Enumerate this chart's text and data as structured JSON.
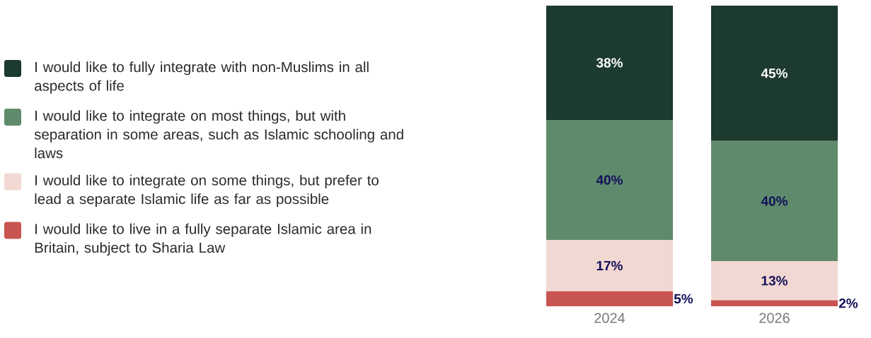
{
  "chart_data": {
    "type": "bar",
    "stacked": true,
    "legend": "left",
    "categories": [
      "2024",
      "2026"
    ],
    "series": [
      {
        "name": "I would like to live in a fully separate Islamic area in Britain, subject to Sharia Law",
        "color": "#c85550",
        "values": [
          5,
          2
        ],
        "value_labels": [
          "5%",
          "2%"
        ]
      },
      {
        "name": "I would like to integrate on some things, but prefer to lead a separate Islamic life as far as possible",
        "color": "#f2d8d2",
        "values": [
          17,
          13
        ],
        "value_labels": [
          "17%",
          "13%"
        ]
      },
      {
        "name": "I would like to integrate on most things, but with separation in some areas, such as Islamic schooling and laws",
        "color": "#5f8b6c",
        "values": [
          40,
          40
        ],
        "value_labels": [
          "40%",
          "40%"
        ]
      },
      {
        "name": "I would like to fully integrate with non-Muslims in all aspects of life",
        "color": "#1c3a2e",
        "values": [
          38,
          45
        ],
        "value_labels": [
          "38%",
          "45%"
        ]
      }
    ]
  }
}
